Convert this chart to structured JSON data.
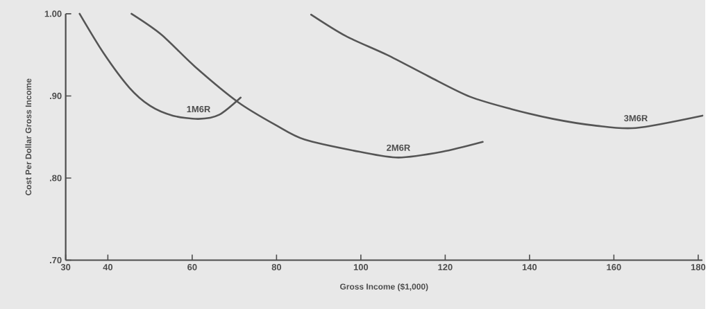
{
  "chart_data": {
    "type": "line",
    "xlabel": "Gross Income ($1,000)",
    "ylabel": "Cost Per Dollar Gross Income",
    "xlim": [
      30,
      181
    ],
    "ylim": [
      0.7,
      1.0
    ],
    "xticks": [
      30,
      40,
      60,
      80,
      100,
      120,
      140,
      160,
      180
    ],
    "yticks": [
      {
        "value": 0.7,
        "label": ".70"
      },
      {
        "value": 0.8,
        "label": ".80"
      },
      {
        "value": 0.9,
        "label": ".90"
      },
      {
        "value": 1.0,
        "label": "1.00"
      }
    ],
    "grid": false,
    "legend": false,
    "marker": "none",
    "line_style": "solid",
    "series": [
      {
        "name": "1M6R",
        "color": "#555555",
        "x": [
          33.3,
          39.0,
          45.1,
          50.0,
          55.4,
          61.5,
          66.4,
          71.5
        ],
        "values": [
          1.0,
          0.952,
          0.91,
          0.888,
          0.876,
          0.872,
          0.877,
          0.898
        ]
      },
      {
        "name": "2M6R",
        "color": "#555555",
        "x": [
          45.6,
          52.6,
          60.8,
          71.0,
          80.0,
          86.6,
          99.7,
          108.9,
          119.3,
          128.9
        ],
        "values": [
          1.0,
          0.975,
          0.935,
          0.892,
          0.864,
          0.847,
          0.832,
          0.825,
          0.832,
          0.844
        ]
      },
      {
        "name": "3M6R",
        "color": "#555555",
        "x": [
          88.2,
          96.4,
          106.2,
          116.0,
          125.9,
          135.7,
          145.6,
          155.4,
          165.2,
          181.0
        ],
        "values": [
          0.999,
          0.973,
          0.95,
          0.924,
          0.899,
          0.884,
          0.872,
          0.864,
          0.861,
          0.876
        ]
      }
    ]
  }
}
